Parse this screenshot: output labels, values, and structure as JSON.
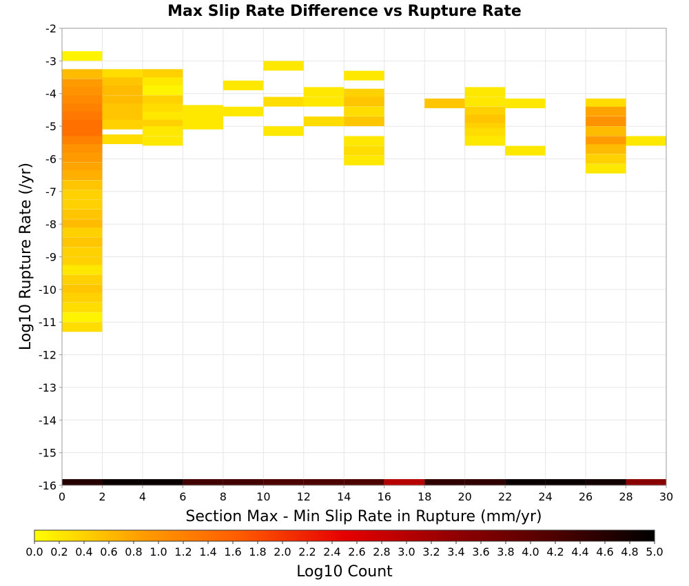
{
  "chart_data": {
    "type": "heatmap",
    "title": "Max Slip Rate Difference vs Rupture Rate",
    "xlabel": "Section Max - Min Slip Rate in Rupture (mm/yr)",
    "ylabel": "Log10 Rupture Rate (/yr)",
    "xlim": [
      0,
      30
    ],
    "ylim": [
      -16,
      -2
    ],
    "x_ticks": [
      "0",
      "2",
      "4",
      "6",
      "8",
      "10",
      "12",
      "14",
      "16",
      "18",
      "20",
      "22",
      "24",
      "26",
      "28",
      "30"
    ],
    "y_ticks": [
      "-2",
      "-3",
      "-4",
      "-5",
      "-6",
      "-7",
      "-8",
      "-9",
      "-10",
      "-11",
      "-12",
      "-13",
      "-14",
      "-15",
      "-16"
    ],
    "grid": true,
    "colorbar": {
      "label": "Log10 Count",
      "range": [
        0,
        5
      ],
      "ticks": [
        "0.0",
        "0.2",
        "0.4",
        "0.6",
        "0.8",
        "1.0",
        "1.2",
        "1.4",
        "1.6",
        "1.8",
        "2.0",
        "2.2",
        "2.4",
        "2.6",
        "2.8",
        "3.0",
        "3.2",
        "3.4",
        "3.6",
        "3.8",
        "4.0",
        "4.2",
        "4.4",
        "4.6",
        "4.8",
        "5.0"
      ],
      "colors": [
        "#ffff00",
        "#ffa000",
        "#ff5a00",
        "#e60000",
        "#960000",
        "#500000",
        "#000000"
      ]
    },
    "cells": [
      {
        "x": 0,
        "y": -2.85,
        "value": 0.1
      },
      {
        "x": 0,
        "y": -3.4,
        "value": 0.6
      },
      {
        "x": 0,
        "y": -3.7,
        "value": 0.9
      },
      {
        "x": 0,
        "y": -3.95,
        "value": 1.0
      },
      {
        "x": 0,
        "y": -4.2,
        "value": 1.1
      },
      {
        "x": 0,
        "y": -4.45,
        "value": 1.2
      },
      {
        "x": 0,
        "y": -4.7,
        "value": 1.3
      },
      {
        "x": 0,
        "y": -4.95,
        "value": 1.4
      },
      {
        "x": 0,
        "y": -5.2,
        "value": 1.4
      },
      {
        "x": 0,
        "y": -5.45,
        "value": 1.2
      },
      {
        "x": 0,
        "y": -5.7,
        "value": 1.0
      },
      {
        "x": 0,
        "y": -5.95,
        "value": 0.9
      },
      {
        "x": 0,
        "y": -6.25,
        "value": 0.8
      },
      {
        "x": 0,
        "y": -6.5,
        "value": 0.7
      },
      {
        "x": 0,
        "y": -6.8,
        "value": 0.5
      },
      {
        "x": 0,
        "y": -7.1,
        "value": 0.4
      },
      {
        "x": 0,
        "y": -7.4,
        "value": 0.4
      },
      {
        "x": 0,
        "y": -7.7,
        "value": 0.5
      },
      {
        "x": 0,
        "y": -8.0,
        "value": 0.6
      },
      {
        "x": 0,
        "y": -8.25,
        "value": 0.4
      },
      {
        "x": 0,
        "y": -8.55,
        "value": 0.5
      },
      {
        "x": 0,
        "y": -8.85,
        "value": 0.4
      },
      {
        "x": 0,
        "y": -9.15,
        "value": 0.4
      },
      {
        "x": 0,
        "y": -9.4,
        "value": 0.2
      },
      {
        "x": 0,
        "y": -9.7,
        "value": 0.4
      },
      {
        "x": 0,
        "y": -10.0,
        "value": 0.5
      },
      {
        "x": 0,
        "y": -10.25,
        "value": 0.4
      },
      {
        "x": 0,
        "y": -10.55,
        "value": 0.3
      },
      {
        "x": 0,
        "y": -10.85,
        "value": 0.1
      },
      {
        "x": 0,
        "y": -11.15,
        "value": 0.3
      },
      {
        "x": 2,
        "y": -3.4,
        "value": 0.3
      },
      {
        "x": 2,
        "y": -3.65,
        "value": 0.5
      },
      {
        "x": 2,
        "y": -3.9,
        "value": 0.6
      },
      {
        "x": 2,
        "y": -4.2,
        "value": 0.6
      },
      {
        "x": 2,
        "y": -4.45,
        "value": 0.5
      },
      {
        "x": 2,
        "y": -4.7,
        "value": 0.5
      },
      {
        "x": 2,
        "y": -4.95,
        "value": 0.4
      },
      {
        "x": 2,
        "y": -5.4,
        "value": 0.3
      },
      {
        "x": 4,
        "y": -3.4,
        "value": 0.4
      },
      {
        "x": 4,
        "y": -3.65,
        "value": 0.2
      },
      {
        "x": 4,
        "y": -3.9,
        "value": 0.1
      },
      {
        "x": 4,
        "y": -4.2,
        "value": 0.4
      },
      {
        "x": 4,
        "y": -4.45,
        "value": 0.3
      },
      {
        "x": 4,
        "y": -4.7,
        "value": 0.2
      },
      {
        "x": 4,
        "y": -4.95,
        "value": 0.4
      },
      {
        "x": 4,
        "y": -5.15,
        "value": 0.2
      },
      {
        "x": 4,
        "y": -5.45,
        "value": 0.2
      },
      {
        "x": 6,
        "y": -4.5,
        "value": 0.2
      },
      {
        "x": 6,
        "y": -4.75,
        "value": 0.2
      },
      {
        "x": 6,
        "y": -4.95,
        "value": 0.2
      },
      {
        "x": 8,
        "y": -3.75,
        "value": 0.2
      },
      {
        "x": 8,
        "y": -4.55,
        "value": 0.2
      },
      {
        "x": 10,
        "y": -3.15,
        "value": 0.2
      },
      {
        "x": 10,
        "y": -4.25,
        "value": 0.3
      },
      {
        "x": 10,
        "y": -5.15,
        "value": 0.2
      },
      {
        "x": 12,
        "y": -3.95,
        "value": 0.2
      },
      {
        "x": 12,
        "y": -4.25,
        "value": 0.2
      },
      {
        "x": 12,
        "y": -4.85,
        "value": 0.3
      },
      {
        "x": 14,
        "y": -3.45,
        "value": 0.2
      },
      {
        "x": 14,
        "y": -4.0,
        "value": 0.4
      },
      {
        "x": 14,
        "y": -4.25,
        "value": 0.5
      },
      {
        "x": 14,
        "y": -4.55,
        "value": 0.3
      },
      {
        "x": 14,
        "y": -4.85,
        "value": 0.5
      },
      {
        "x": 14,
        "y": -5.45,
        "value": 0.2
      },
      {
        "x": 14,
        "y": -5.75,
        "value": 0.3
      },
      {
        "x": 14,
        "y": -6.05,
        "value": 0.2
      },
      {
        "x": 18,
        "y": -4.3,
        "value": 0.5
      },
      {
        "x": 20,
        "y": -3.95,
        "value": 0.2
      },
      {
        "x": 20,
        "y": -4.25,
        "value": 0.2
      },
      {
        "x": 20,
        "y": -4.55,
        "value": 0.4
      },
      {
        "x": 20,
        "y": -4.8,
        "value": 0.5
      },
      {
        "x": 20,
        "y": -5.05,
        "value": 0.4
      },
      {
        "x": 20,
        "y": -5.2,
        "value": 0.3
      },
      {
        "x": 20,
        "y": -5.45,
        "value": 0.2
      },
      {
        "x": 22,
        "y": -4.3,
        "value": 0.2
      },
      {
        "x": 22,
        "y": -5.75,
        "value": 0.2
      },
      {
        "x": 26,
        "y": -4.3,
        "value": 0.3
      },
      {
        "x": 26,
        "y": -4.55,
        "value": 0.8
      },
      {
        "x": 26,
        "y": -4.85,
        "value": 1.0
      },
      {
        "x": 26,
        "y": -5.15,
        "value": 0.6
      },
      {
        "x": 26,
        "y": -5.45,
        "value": 0.9
      },
      {
        "x": 26,
        "y": -5.7,
        "value": 0.6
      },
      {
        "x": 26,
        "y": -6.0,
        "value": 0.4
      },
      {
        "x": 26,
        "y": -6.3,
        "value": 0.2
      },
      {
        "x": 28,
        "y": -5.45,
        "value": 0.2
      }
    ],
    "bottom_row": [
      {
        "x": 0,
        "value": 4.6
      },
      {
        "x": 2,
        "value": 4.9
      },
      {
        "x": 4,
        "value": 4.9
      },
      {
        "x": 6,
        "value": 4.3
      },
      {
        "x": 8,
        "value": 4.3
      },
      {
        "x": 10,
        "value": 4.2
      },
      {
        "x": 12,
        "value": 4.2
      },
      {
        "x": 14,
        "value": 4.2
      },
      {
        "x": 16,
        "value": 3.0
      },
      {
        "x": 18,
        "value": 4.5
      },
      {
        "x": 20,
        "value": 4.5
      },
      {
        "x": 22,
        "value": 4.9
      },
      {
        "x": 24,
        "value": 4.9
      },
      {
        "x": 26,
        "value": 4.8
      },
      {
        "x": 28,
        "value": 3.5
      }
    ]
  }
}
